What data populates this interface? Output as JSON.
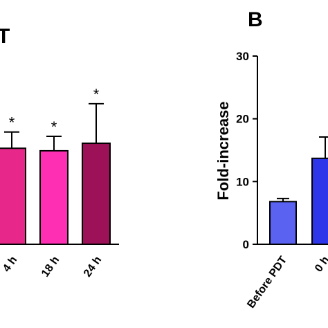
{
  "colors": {
    "left_bars": [
      "#e8278a",
      "#ff2fb4",
      "#9c1157"
    ],
    "right_bars": [
      "#5a62f2",
      "#2d36e8"
    ],
    "axis": "#000000"
  },
  "chart_data": [
    {
      "type": "bar",
      "panel_label": "T",
      "categories": [
        "4 h",
        "18 h",
        "24 h"
      ],
      "values": [
        15.3,
        14.9,
        16.1
      ],
      "errors": [
        2.6,
        2.3,
        6.3
      ],
      "significance": [
        "*",
        "*",
        "*"
      ],
      "ylim": [
        0,
        30
      ]
    },
    {
      "type": "bar",
      "panel_label": "B",
      "ylabel": "Fold-increase",
      "categories": [
        "Before PDT",
        "0 h"
      ],
      "values": [
        6.8,
        13.7
      ],
      "errors": [
        0.5,
        3.4
      ],
      "ylim": [
        0,
        30
      ],
      "yticks": [
        "0",
        "10",
        "20",
        "30"
      ]
    }
  ]
}
